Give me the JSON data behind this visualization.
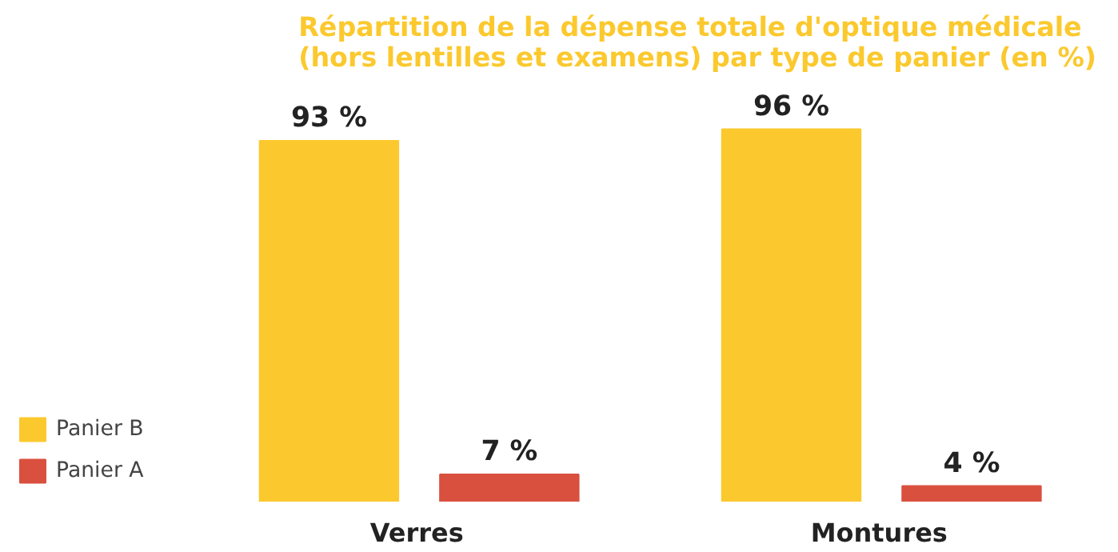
{
  "chart_data": {
    "type": "bar",
    "title": "Répartition de la dépense totale d'optique médicale\n(hors lentilles et examens) par type de panier (en %)",
    "categories": [
      "Verres",
      "Montures"
    ],
    "series": [
      {
        "name": "Panier B",
        "color": "#fbc92e",
        "values": [
          93,
          96
        ],
        "value_labels": [
          "93 %",
          "96 %"
        ]
      },
      {
        "name": "Panier A",
        "color": "#d9503f",
        "values": [
          7,
          4
        ],
        "value_labels": [
          "7 %",
          "4 %"
        ]
      }
    ],
    "legend": "bottom left"
  }
}
